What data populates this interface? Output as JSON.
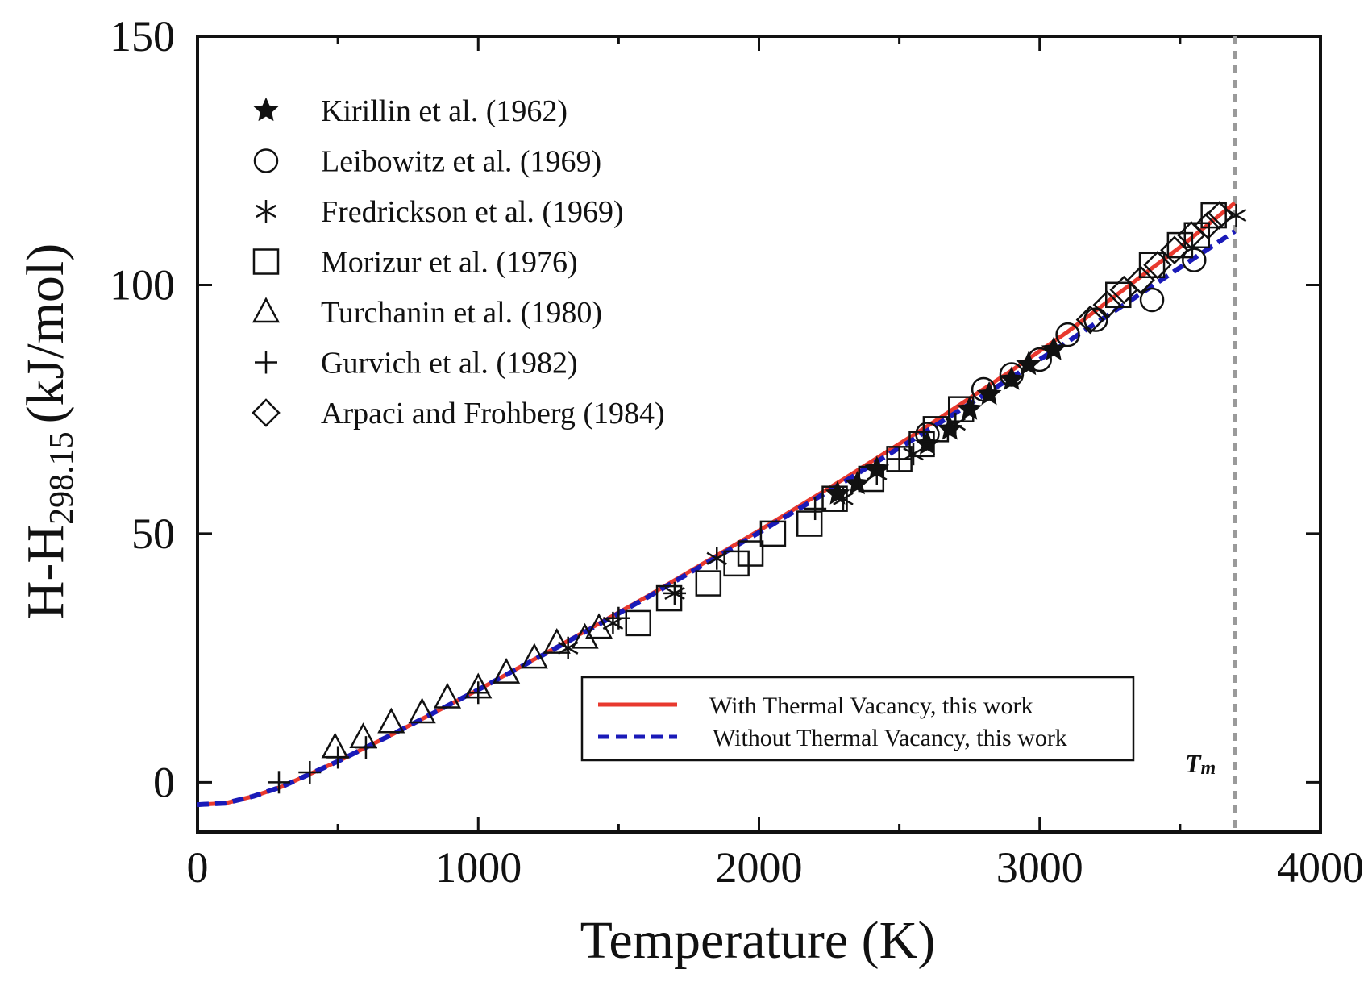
{
  "chart_data": {
    "type": "scatter",
    "title": "",
    "xlabel": "Temperature (K)",
    "ylabel_main": "H-H",
    "ylabel_sub": "298.15",
    "ylabel_unit": "(kJ/mol)",
    "xlim": [
      0,
      4000
    ],
    "ylim": [
      -10,
      150
    ],
    "x_ticks": [
      "0",
      "1000",
      "2000",
      "3000",
      "4000"
    ],
    "y_ticks": [
      "0",
      "50",
      "100",
      "150"
    ],
    "x_tick_values": [
      0,
      1000,
      2000,
      3000,
      4000
    ],
    "y_tick_values": [
      0,
      50,
      100,
      150
    ],
    "grid": false,
    "legend_points_placement": "top-left",
    "legend_lines_placement": "bottom-right",
    "melting_point": {
      "x": 3695,
      "label_main": "T",
      "label_sub": "m",
      "color": "#9a9a9a"
    },
    "series": [
      {
        "name": "Kirillin et al. (1962)",
        "marker": "star",
        "x": [
          2280,
          2350,
          2420,
          2600,
          2680,
          2750,
          2820,
          2900,
          2960,
          3050
        ],
        "y": [
          58,
          60,
          63,
          68,
          71,
          75,
          78,
          81,
          84,
          87
        ]
      },
      {
        "name": "Leibowitz et al. (1969)",
        "marker": "circle",
        "x": [
          2600,
          2800,
          2900,
          3000,
          3100,
          3200,
          3400,
          3550
        ],
        "y": [
          70,
          79,
          82,
          85,
          90,
          93,
          97,
          105
        ]
      },
      {
        "name": "Fredrickson et al. (1969)",
        "marker": "asterisk",
        "x": [
          1320,
          1480,
          1700,
          1850,
          2300,
          2420,
          2550,
          2700,
          3700
        ],
        "y": [
          27,
          32,
          38,
          45,
          57,
          62,
          66,
          72,
          114
        ]
      },
      {
        "name": "Morizur et al. (1976)",
        "marker": "square",
        "x": [
          1570,
          1680,
          1820,
          1920,
          1970,
          2050,
          2180,
          2270,
          2400,
          2500,
          2580,
          2630,
          2720,
          3280,
          3400,
          3500,
          3560,
          3620
        ],
        "y": [
          32,
          37,
          40,
          44,
          46,
          50,
          52,
          57,
          61,
          65,
          68,
          71,
          75,
          98,
          104,
          108,
          110,
          114
        ]
      },
      {
        "name": "Turchanin et al. (1980)",
        "marker": "triangle",
        "x": [
          490,
          590,
          690,
          800,
          890,
          1000,
          1100,
          1200,
          1280,
          1380,
          1430
        ],
        "y": [
          7,
          9,
          12,
          14,
          17,
          19,
          22,
          25,
          28,
          29,
          31
        ]
      },
      {
        "name": "Gurvich et al. (1982)",
        "marker": "plus",
        "x": [
          290,
          400,
          500,
          600,
          1000,
          1500,
          1700,
          2200,
          2500
        ],
        "y": [
          0,
          2,
          5,
          7,
          18,
          33,
          38,
          55,
          65
        ]
      },
      {
        "name": "Arpaci and Frohberg (1984)",
        "marker": "diamond",
        "x": [
          3180,
          3240,
          3300,
          3360,
          3420,
          3480,
          3540,
          3600,
          3640
        ],
        "y": [
          93,
          96,
          99,
          101,
          104,
          107,
          110,
          112,
          114
        ]
      }
    ],
    "lines": [
      {
        "name": "With Thermal Vacancy, this work",
        "color": "#e8392e",
        "dash": "solid",
        "x": [
          0,
          100,
          200,
          300,
          500,
          700,
          1000,
          1300,
          1600,
          2000,
          2300,
          2600,
          2900,
          3100,
          3300,
          3500,
          3695
        ],
        "y": [
          -4.5,
          -4.2,
          -2.8,
          -0.9,
          4.2,
          9.8,
          18.6,
          27.8,
          37.3,
          50.6,
          60.9,
          71.6,
          82.8,
          90.6,
          99.1,
          107.6,
          116.5
        ]
      },
      {
        "name": "Without Thermal Vacancy, this work",
        "color": "#1a1ab8",
        "dash": "dashed",
        "x": [
          0,
          100,
          200,
          300,
          500,
          700,
          1000,
          1300,
          1600,
          2000,
          2300,
          2600,
          2900,
          3100,
          3300,
          3500,
          3695
        ],
        "y": [
          -4.5,
          -4.2,
          -2.8,
          -0.9,
          4.2,
          9.8,
          18.6,
          27.7,
          37.1,
          50.2,
          60.3,
          70.7,
          81.4,
          88.6,
          96.0,
          103.5,
          110.8
        ]
      }
    ]
  }
}
